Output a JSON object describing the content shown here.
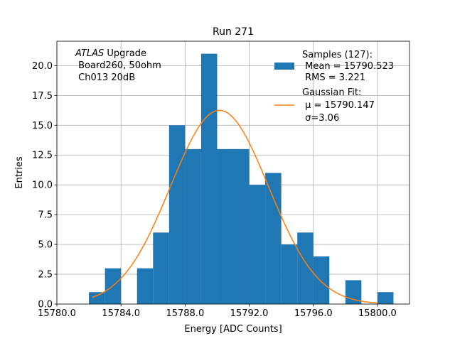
{
  "chart_data": {
    "type": "bar",
    "title": "Run 271",
    "xlabel": "Energy [ADC Counts]",
    "ylabel": "Entries",
    "xlim": [
      15780.0,
      15802.0
    ],
    "ylim": [
      0,
      22.05
    ],
    "bin_width": 1.0,
    "bins": [
      {
        "x": 15782.0,
        "count": 1
      },
      {
        "x": 15783.0,
        "count": 3
      },
      {
        "x": 15785.0,
        "count": 3
      },
      {
        "x": 15786.0,
        "count": 6
      },
      {
        "x": 15787.0,
        "count": 15
      },
      {
        "x": 15788.0,
        "count": 13
      },
      {
        "x": 15789.0,
        "count": 21
      },
      {
        "x": 15790.0,
        "count": 13
      },
      {
        "x": 15791.0,
        "count": 13
      },
      {
        "x": 15792.0,
        "count": 10
      },
      {
        "x": 15793.0,
        "count": 11
      },
      {
        "x": 15794.0,
        "count": 5
      },
      {
        "x": 15795.0,
        "count": 6
      },
      {
        "x": 15796.0,
        "count": 4
      },
      {
        "x": 15798.0,
        "count": 2
      },
      {
        "x": 15800.0,
        "count": 1
      }
    ],
    "fit": {
      "type": "gaussian",
      "mu": 15790.147,
      "sigma": 3.06,
      "amplitude": 16.25,
      "x_range": [
        15782.2,
        15800.0
      ]
    },
    "x_ticks": [
      "15780.0",
      "15784.0",
      "15788.0",
      "15792.0",
      "15796.0",
      "15800.0"
    ],
    "x_tick_values": [
      15780,
      15784,
      15788,
      15792,
      15796,
      15800
    ],
    "y_ticks": [
      "0.0",
      "2.5",
      "5.0",
      "7.5",
      "10.0",
      "12.5",
      "15.0",
      "17.5",
      "20.0"
    ],
    "y_tick_values": [
      0,
      2.5,
      5,
      7.5,
      10,
      12.5,
      15,
      17.5,
      20
    ],
    "grid": true,
    "legend_position": "top-right",
    "legend": [
      {
        "name": "histogram",
        "lines": [
          "Samples (127):",
          " Mean = 15790.523",
          " RMS = 3.221"
        ],
        "color": "#1f77b4"
      },
      {
        "name": "fit",
        "lines": [
          "Gaussian Fit:",
          " μ = 15790.147",
          " σ=3.06"
        ],
        "color": "#ff7f0e"
      }
    ],
    "annotation": {
      "italic": "ATLAS",
      "rest": " Upgrade",
      "line2": " Board260, 50ohm",
      "line3": " Ch013 20dB"
    }
  }
}
